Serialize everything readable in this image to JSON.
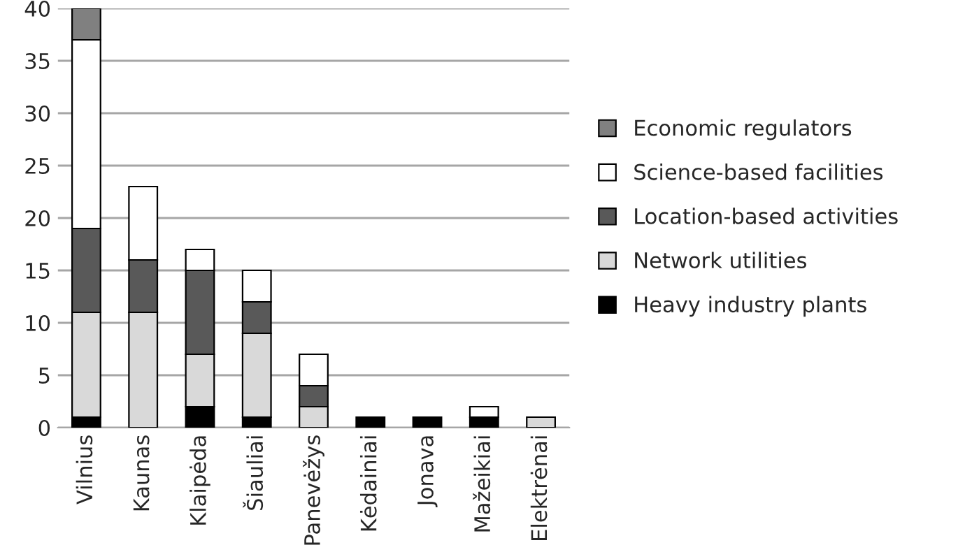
{
  "chart_data": {
    "type": "bar",
    "stacked": true,
    "categories": [
      "Vilnius",
      "Kaunas",
      "Klaipėda",
      "Šiauliai",
      "Panevėžys",
      "Kėdainiai",
      "Jonava",
      "Mažeikiai",
      "Elektrėnai"
    ],
    "series": [
      {
        "name": "Heavy industry plants",
        "color": "#000000",
        "values": [
          1,
          0,
          2,
          1,
          0,
          1,
          1,
          1,
          0
        ]
      },
      {
        "name": "Network utilities",
        "color": "#d9d9d9",
        "values": [
          10,
          11,
          5,
          8,
          2,
          0,
          0,
          0,
          1
        ]
      },
      {
        "name": "Location-based activities",
        "color": "#595959",
        "values": [
          8,
          5,
          8,
          3,
          2,
          0,
          0,
          0,
          0
        ]
      },
      {
        "name": "Science-based facilities",
        "color": "#ffffff",
        "values": [
          18,
          7,
          2,
          3,
          3,
          0,
          0,
          1,
          0
        ]
      },
      {
        "name": "Economic regulators",
        "color": "#808080",
        "values": [
          3,
          0,
          0,
          0,
          0,
          0,
          0,
          0,
          0
        ]
      }
    ],
    "ylim": [
      0,
      40
    ],
    "yticks": [
      0,
      5,
      10,
      15,
      20,
      25,
      30,
      35,
      40
    ],
    "grid": "y",
    "legend": "right"
  }
}
